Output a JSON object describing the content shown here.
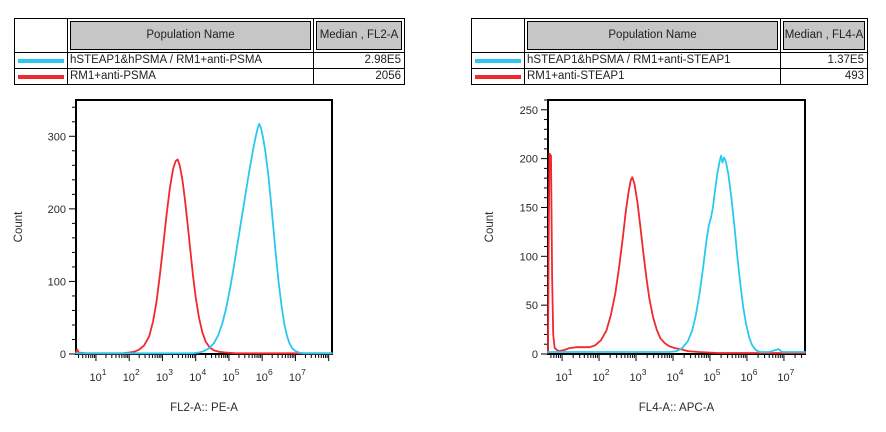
{
  "panels": [
    {
      "name": "FL2-A panel",
      "table": {
        "header": {
          "population": "Population Name",
          "median": "Median , FL2-A"
        },
        "rows": [
          {
            "population": "hSTEAP1&hPSMA / RM1+anti-PSMA",
            "median": "2.98E5",
            "color": "#2BC7F0"
          },
          {
            "population": "RM1+anti-PSMA",
            "median": "2056",
            "color": "#F1282D"
          }
        ]
      }
    },
    {
      "name": "FL4-A panel",
      "table": {
        "header": {
          "population": "Population Name",
          "median": "Median , FL4-A"
        },
        "rows": [
          {
            "population": "hSTEAP1&hPSMA / RM1+anti-STEAP1",
            "median": "1.37E5",
            "color": "#2BC7F0"
          },
          {
            "population": "RM1+anti-STEAP1",
            "median": "493",
            "color": "#F1282D"
          }
        ]
      }
    }
  ],
  "chart_data": [
    {
      "type": "line",
      "title": "",
      "xlabel": "FL2-A:: PE-A",
      "ylabel": "Count",
      "x_scale": "log10",
      "xlim_log10": [
        0.4,
        8.1
      ],
      "x_decades_labeled": [
        1,
        2,
        3,
        4,
        5,
        6,
        7
      ],
      "ylim": [
        0,
        350
      ],
      "y_major_step": 100,
      "y_minor_step": 20,
      "grid": false,
      "legend": "none",
      "series": [
        {
          "name": "RM1+anti-PSMA",
          "color": "#F1282D",
          "median": "2056",
          "points_logx_count": [
            [
              0.4,
              2
            ],
            [
              0.44,
              6
            ],
            [
              0.48,
              2
            ],
            [
              0.7,
              1
            ],
            [
              1.0,
              1
            ],
            [
              1.4,
              1
            ],
            [
              1.8,
              1
            ],
            [
              2.0,
              2
            ],
            [
              2.15,
              3
            ],
            [
              2.3,
              6
            ],
            [
              2.45,
              12
            ],
            [
              2.6,
              24
            ],
            [
              2.72,
              45
            ],
            [
              2.82,
              72
            ],
            [
              2.92,
              108
            ],
            [
              3.02,
              148
            ],
            [
              3.12,
              190
            ],
            [
              3.22,
              228
            ],
            [
              3.32,
              255
            ],
            [
              3.4,
              266
            ],
            [
              3.46,
              268
            ],
            [
              3.52,
              260
            ],
            [
              3.6,
              240
            ],
            [
              3.68,
              212
            ],
            [
              3.76,
              178
            ],
            [
              3.84,
              142
            ],
            [
              3.92,
              108
            ],
            [
              4.0,
              78
            ],
            [
              4.1,
              50
            ],
            [
              4.2,
              30
            ],
            [
              4.3,
              17
            ],
            [
              4.42,
              9
            ],
            [
              4.55,
              5
            ],
            [
              4.7,
              3
            ],
            [
              4.9,
              2
            ],
            [
              5.2,
              1
            ],
            [
              6.0,
              1
            ],
            [
              7.0,
              1
            ],
            [
              8.1,
              1
            ]
          ]
        },
        {
          "name": "hSTEAP1&hPSMA / RM1+anti-PSMA",
          "color": "#2BC7F0",
          "median": "2.98E5",
          "points_logx_count": [
            [
              0.4,
              1
            ],
            [
              1.5,
              1
            ],
            [
              2.5,
              1
            ],
            [
              3.5,
              1
            ],
            [
              3.9,
              1
            ],
            [
              4.1,
              2
            ],
            [
              4.25,
              4
            ],
            [
              4.4,
              8
            ],
            [
              4.55,
              15
            ],
            [
              4.68,
              26
            ],
            [
              4.8,
              42
            ],
            [
              4.92,
              64
            ],
            [
              5.04,
              92
            ],
            [
              5.16,
              124
            ],
            [
              5.28,
              158
            ],
            [
              5.4,
              192
            ],
            [
              5.52,
              226
            ],
            [
              5.62,
              254
            ],
            [
              5.72,
              280
            ],
            [
              5.8,
              298
            ],
            [
              5.86,
              310
            ],
            [
              5.91,
              317
            ],
            [
              5.96,
              312
            ],
            [
              6.02,
              300
            ],
            [
              6.1,
              278
            ],
            [
              6.18,
              248
            ],
            [
              6.26,
              212
            ],
            [
              6.34,
              172
            ],
            [
              6.42,
              133
            ],
            [
              6.5,
              97
            ],
            [
              6.58,
              67
            ],
            [
              6.66,
              43
            ],
            [
              6.74,
              26
            ],
            [
              6.82,
              15
            ],
            [
              6.9,
              8
            ],
            [
              7.0,
              4
            ],
            [
              7.1,
              2
            ],
            [
              7.25,
              1
            ],
            [
              8.1,
              1
            ]
          ]
        }
      ]
    },
    {
      "type": "line",
      "title": "",
      "xlabel": "FL4-A:: APC-A",
      "ylabel": "Count",
      "x_scale": "log10",
      "xlim_log10": [
        0.62,
        7.57
      ],
      "x_decades_labeled": [
        1,
        2,
        3,
        4,
        5,
        6,
        7
      ],
      "ylim": [
        0,
        260
      ],
      "y_major_step": 50,
      "y_minor_step": 10,
      "grid": false,
      "legend": "none",
      "series": [
        {
          "name": "RM1+anti-STEAP1",
          "color": "#F1282D",
          "median": "493",
          "points_logx_count": [
            [
              0.62,
              1
            ],
            [
              0.64,
              120
            ],
            [
              0.66,
              205
            ],
            [
              0.7,
              203
            ],
            [
              0.73,
              80
            ],
            [
              0.76,
              20
            ],
            [
              0.8,
              6
            ],
            [
              0.9,
              3
            ],
            [
              1.05,
              4
            ],
            [
              1.2,
              6
            ],
            [
              1.4,
              7
            ],
            [
              1.6,
              7
            ],
            [
              1.75,
              7
            ],
            [
              1.9,
              9
            ],
            [
              2.05,
              14
            ],
            [
              2.2,
              24
            ],
            [
              2.32,
              40
            ],
            [
              2.44,
              62
            ],
            [
              2.54,
              88
            ],
            [
              2.64,
              118
            ],
            [
              2.72,
              145
            ],
            [
              2.8,
              166
            ],
            [
              2.86,
              178
            ],
            [
              2.9,
              181
            ],
            [
              2.96,
              174
            ],
            [
              3.04,
              155
            ],
            [
              3.12,
              130
            ],
            [
              3.2,
              103
            ],
            [
              3.28,
              78
            ],
            [
              3.36,
              57
            ],
            [
              3.46,
              38
            ],
            [
              3.56,
              25
            ],
            [
              3.66,
              16
            ],
            [
              3.78,
              11
            ],
            [
              3.9,
              8
            ],
            [
              4.05,
              6
            ],
            [
              4.2,
              5
            ],
            [
              4.4,
              3
            ],
            [
              4.7,
              2
            ],
            [
              5.2,
              1
            ],
            [
              6.0,
              1
            ],
            [
              7.57,
              1
            ]
          ]
        },
        {
          "name": "hSTEAP1&hPSMA / RM1+anti-STEAP1",
          "color": "#2BC7F0",
          "median": "1.37E5",
          "points_logx_count": [
            [
              0.62,
              2
            ],
            [
              1.5,
              2
            ],
            [
              2.5,
              2
            ],
            [
              3.5,
              2
            ],
            [
              3.9,
              2
            ],
            [
              4.1,
              3
            ],
            [
              4.25,
              6
            ],
            [
              4.4,
              13
            ],
            [
              4.52,
              24
            ],
            [
              4.62,
              40
            ],
            [
              4.72,
              62
            ],
            [
              4.82,
              90
            ],
            [
              4.9,
              115
            ],
            [
              4.97,
              132
            ],
            [
              5.03,
              140
            ],
            [
              5.08,
              150
            ],
            [
              5.14,
              168
            ],
            [
              5.2,
              185
            ],
            [
              5.26,
              197
            ],
            [
              5.3,
              203
            ],
            [
              5.34,
              196
            ],
            [
              5.38,
              201
            ],
            [
              5.43,
              197
            ],
            [
              5.5,
              183
            ],
            [
              5.58,
              160
            ],
            [
              5.66,
              131
            ],
            [
              5.74,
              100
            ],
            [
              5.82,
              72
            ],
            [
              5.9,
              48
            ],
            [
              5.98,
              30
            ],
            [
              6.06,
              17
            ],
            [
              6.14,
              9
            ],
            [
              6.24,
              4
            ],
            [
              6.35,
              2
            ],
            [
              6.6,
              2
            ],
            [
              6.85,
              5
            ],
            [
              6.95,
              2
            ],
            [
              7.3,
              2
            ],
            [
              7.57,
              2
            ]
          ]
        }
      ]
    }
  ]
}
